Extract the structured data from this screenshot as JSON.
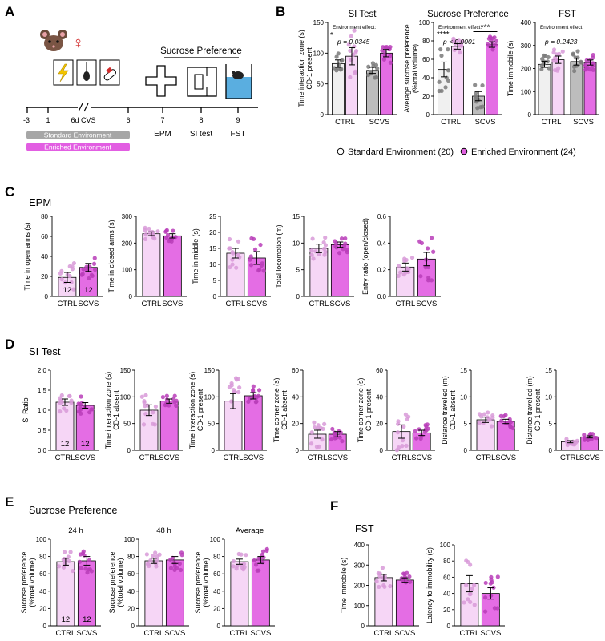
{
  "panel_letters": {
    "a": "A",
    "b": "B",
    "c": "C",
    "d": "D",
    "e": "E",
    "f": "F"
  },
  "panel_a": {
    "sex_symbol": "♀",
    "assay_title": "Sucrose Preference",
    "timeline_ticks": [
      "-3",
      "1",
      "6d CVS",
      "6",
      "7",
      "8",
      "9"
    ],
    "test_labels": [
      "EPM",
      "SI test",
      "FST"
    ],
    "env_standard": "Standard Environment",
    "env_enriched": "Enriched Environment",
    "colors": {
      "standard": "#9a9a9a",
      "enriched": "#e060e0",
      "water": "#5aaee0"
    },
    "icons": [
      "mouse-face-icon",
      "lightning-icon",
      "tail-hang-icon",
      "restraint-icon",
      "maze-plus-icon",
      "si-arena-icon",
      "swim-cylinder-icon"
    ]
  },
  "panel_b_legend": {
    "standard": "Standard Environment (20)",
    "enriched": "Enriched Environment (24)"
  },
  "chart_data": [
    {
      "id": "b1",
      "type": "bar",
      "title": "SI Test",
      "ylabel": "Time interaction zone (s)\nCD-1 present",
      "ylim": [
        0,
        150
      ],
      "yticks": [
        0,
        50,
        100,
        150
      ],
      "groups": [
        "CTRL",
        "SCVS"
      ],
      "series": [
        {
          "name": "Standard Environment",
          "values": [
            83,
            72
          ],
          "sem": [
            6,
            5
          ]
        },
        {
          "name": "Enriched Environment",
          "values": [
            95,
            100
          ],
          "sem": [
            14,
            6
          ]
        }
      ],
      "annotations": [
        "Environment effect:",
        "p = 0.0345",
        "*"
      ]
    },
    {
      "id": "b2",
      "type": "bar",
      "title": "Sucrose Preference",
      "ylabel": "Average sucrose preference\n(%total volume)",
      "ylim": [
        0,
        100
      ],
      "yticks": [
        0,
        20,
        40,
        60,
        80,
        100
      ],
      "groups": [
        "CTRL",
        "SCVS"
      ],
      "series": [
        {
          "name": "Standard Environment",
          "values": [
            49,
            20
          ],
          "sem": [
            8,
            5
          ]
        },
        {
          "name": "Enriched Environment",
          "values": [
            74,
            76
          ],
          "sem": [
            3,
            3
          ]
        }
      ],
      "annotations": [
        "Environment effect:",
        "p < 0.0001",
        "****",
        "***"
      ]
    },
    {
      "id": "b3",
      "type": "bar",
      "title": "FST",
      "ylabel": "Time immobile (s)",
      "ylim": [
        0,
        400
      ],
      "yticks": [
        0,
        100,
        200,
        300,
        400
      ],
      "groups": [
        "CTRL",
        "SCVS"
      ],
      "series": [
        {
          "name": "Standard Environment",
          "values": [
            218,
            230
          ],
          "sem": [
            13,
            15
          ]
        },
        {
          "name": "Enriched Environment",
          "values": [
            238,
            226
          ],
          "sem": [
            16,
            11
          ]
        }
      ],
      "annotations": [
        "Environment effect:",
        "p = 0.2423"
      ]
    },
    {
      "id": "c1",
      "type": "bar",
      "title": "EPM",
      "ylabel": "Time in open arms (s)",
      "ylim": [
        0,
        80
      ],
      "yticks": [
        0,
        20,
        40,
        60,
        80
      ],
      "categories": [
        "CTRL",
        "SCVS"
      ],
      "values": [
        19,
        29
      ],
      "sem": [
        5,
        4
      ],
      "n": [
        12,
        12
      ]
    },
    {
      "id": "c2",
      "type": "bar",
      "ylabel": "Time in closed arms (s)",
      "ylim": [
        0,
        300
      ],
      "yticks": [
        0,
        100,
        200,
        300
      ],
      "categories": [
        "CTRL",
        "SCVS"
      ],
      "values": [
        235,
        227
      ],
      "sem": [
        7,
        8
      ]
    },
    {
      "id": "c3",
      "type": "bar",
      "ylabel": "Time in middle (s)",
      "ylim": [
        0,
        25
      ],
      "yticks": [
        0,
        5,
        10,
        15,
        20,
        25
      ],
      "categories": [
        "CTRL",
        "SCVS"
      ],
      "values": [
        13.5,
        12
      ],
      "sem": [
        1.5,
        2
      ]
    },
    {
      "id": "c4",
      "type": "bar",
      "ylabel": "Total locomotion (m)",
      "ylim": [
        0,
        15
      ],
      "yticks": [
        0,
        5,
        10,
        15
      ],
      "categories": [
        "CTRL",
        "SCVS"
      ],
      "values": [
        9,
        9.7
      ],
      "sem": [
        0.8,
        0.5
      ]
    },
    {
      "id": "c5",
      "type": "bar",
      "ylabel": "Entry ratio (open/closed)",
      "ylim": [
        0,
        0.6
      ],
      "yticks": [
        0.0,
        0.2,
        0.4,
        0.6
      ],
      "categories": [
        "CTRL",
        "SCVS"
      ],
      "values": [
        0.22,
        0.28
      ],
      "sem": [
        0.03,
        0.05
      ]
    },
    {
      "id": "d1",
      "type": "bar",
      "title": "SI Test",
      "ylabel": "SI Ratio",
      "ylim": [
        0,
        2
      ],
      "yticks": [
        0.0,
        0.5,
        1.0,
        1.5,
        2.0
      ],
      "categories": [
        "CTRL",
        "SCVS"
      ],
      "values": [
        1.2,
        1.12
      ],
      "sem": [
        0.08,
        0.07
      ],
      "n": [
        12,
        12
      ]
    },
    {
      "id": "d2",
      "type": "bar",
      "ylabel": "Time interaction zone (s)\nCD-1 absent",
      "ylim": [
        0,
        150
      ],
      "yticks": [
        0,
        50,
        100,
        150
      ],
      "categories": [
        "CTRL",
        "SCVS"
      ],
      "values": [
        75,
        92
      ],
      "sem": [
        10,
        4
      ]
    },
    {
      "id": "d3",
      "type": "bar",
      "ylabel": "Time interaction zone (s)\nCD-1 present",
      "ylim": [
        0,
        150
      ],
      "yticks": [
        0,
        50,
        100,
        150
      ],
      "categories": [
        "CTRL",
        "SCVS"
      ],
      "values": [
        92,
        102
      ],
      "sem": [
        14,
        6
      ]
    },
    {
      "id": "d4",
      "type": "bar",
      "ylabel": "Time corner zone (s)\nCD-1 absent",
      "ylim": [
        0,
        60
      ],
      "yticks": [
        0,
        20,
        40,
        60
      ],
      "categories": [
        "CTRL",
        "SCVS"
      ],
      "values": [
        12,
        12
      ],
      "sem": [
        3,
        2
      ]
    },
    {
      "id": "d5",
      "type": "bar",
      "ylabel": "Time corner zone (s)\nCD-1 present",
      "ylim": [
        0,
        60
      ],
      "yticks": [
        0,
        20,
        40,
        60
      ],
      "categories": [
        "CTRL",
        "SCVS"
      ],
      "values": [
        14,
        13
      ],
      "sem": [
        5,
        2
      ]
    },
    {
      "id": "d6",
      "type": "bar",
      "ylabel": "Distance travelled (m)\nCD-1 absent",
      "ylim": [
        0,
        15
      ],
      "yticks": [
        0,
        5,
        10,
        15
      ],
      "categories": [
        "CTRL",
        "SCVS"
      ],
      "values": [
        5.7,
        5.4
      ],
      "sem": [
        0.5,
        0.4
      ]
    },
    {
      "id": "d7",
      "type": "bar",
      "ylabel": "Distance travelled (m)\nCD-1 present",
      "ylim": [
        0,
        15
      ],
      "yticks": [
        0,
        5,
        10,
        15
      ],
      "categories": [
        "CTRL",
        "SCVS"
      ],
      "values": [
        1.6,
        2.5
      ],
      "sem": [
        0.2,
        0.2
      ]
    },
    {
      "id": "e1",
      "type": "bar",
      "title": "Sucrose Preference",
      "subtitle": "24 h",
      "ylabel": "Sucrose preference\n(%total volume)",
      "ylim": [
        0,
        100
      ],
      "yticks": [
        0,
        20,
        40,
        60,
        80,
        100
      ],
      "categories": [
        "CTRL",
        "SCVS"
      ],
      "values": [
        74,
        75
      ],
      "sem": [
        4,
        5
      ],
      "n": [
        12,
        12
      ]
    },
    {
      "id": "e2",
      "type": "bar",
      "subtitle": "48 h",
      "ylabel": "Sucrose preference\n(%total volume)",
      "ylim": [
        0,
        100
      ],
      "yticks": [
        0,
        20,
        40,
        60,
        80,
        100
      ],
      "categories": [
        "CTRL",
        "SCVS"
      ],
      "values": [
        75,
        76
      ],
      "sem": [
        3,
        4
      ]
    },
    {
      "id": "e3",
      "type": "bar",
      "subtitle": "Average",
      "ylabel": "Sucrose preference\n(%total volume)",
      "ylim": [
        0,
        100
      ],
      "yticks": [
        0,
        20,
        40,
        60,
        80,
        100
      ],
      "categories": [
        "CTRL",
        "SCVS"
      ],
      "values": [
        74,
        76
      ],
      "sem": [
        3,
        4
      ]
    },
    {
      "id": "f1",
      "type": "bar",
      "title": "FST",
      "ylabel": "Time immobile (s)",
      "ylim": [
        0,
        400
      ],
      "yticks": [
        0,
        100,
        200,
        300,
        400
      ],
      "categories": [
        "CTRL",
        "SCVS"
      ],
      "values": [
        238,
        226
      ],
      "sem": [
        16,
        11
      ]
    },
    {
      "id": "f2",
      "type": "bar",
      "ylabel": "Latency to immobility (s)",
      "ylim": [
        0,
        100
      ],
      "yticks": [
        0,
        20,
        40,
        60,
        80,
        100
      ],
      "categories": [
        "CTRL",
        "SCVS"
      ],
      "values": [
        52,
        40
      ],
      "sem": [
        10,
        7
      ]
    }
  ]
}
